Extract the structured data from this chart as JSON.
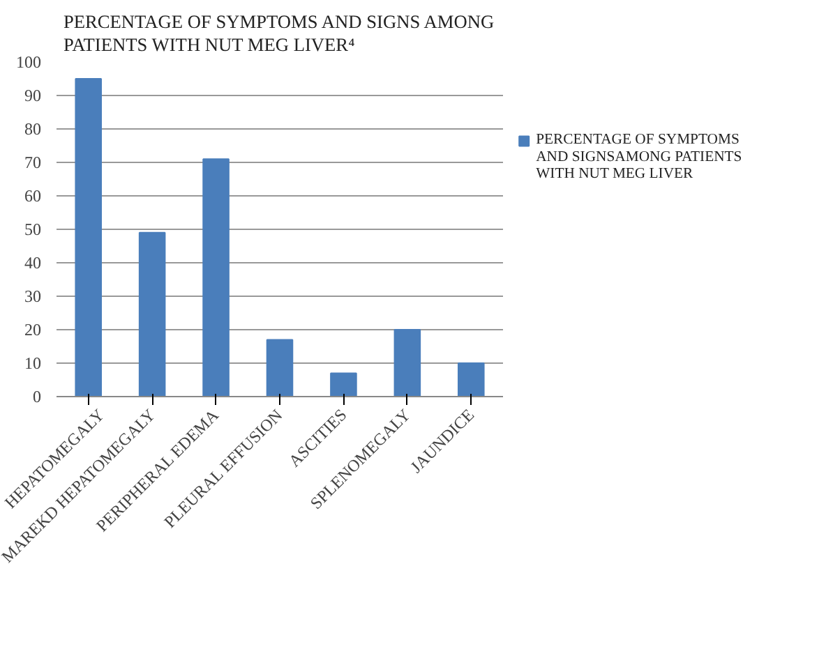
{
  "chart_data": {
    "type": "bar",
    "title": "PERCENTAGE OF SYMPTOMS AND SIGNS AMONG PATIENTS WITH NUT MEG LIVER⁴",
    "categories": [
      "HEPATOMEGALY",
      "MAREKD HEPATOMEGALY",
      "PERIPHERAL EDEMA",
      "PLEURAL EFFUSION",
      "ASCITIES",
      "SPLENOMEGALY",
      "JAUNDICE"
    ],
    "series": [
      {
        "name": "PERCENTAGE OF SYMPTOMS AND SIGNSAMONG PATIENTS WITH NUT MEG LIVER",
        "color": "#4a7ebb",
        "values": [
          95,
          49,
          71,
          17,
          7,
          20,
          10
        ]
      }
    ],
    "ylim": [
      0,
      100
    ],
    "yticks": [
      0,
      10,
      20,
      30,
      40,
      50,
      60,
      70,
      80,
      90,
      100
    ],
    "grid": "y",
    "legend": "right"
  }
}
